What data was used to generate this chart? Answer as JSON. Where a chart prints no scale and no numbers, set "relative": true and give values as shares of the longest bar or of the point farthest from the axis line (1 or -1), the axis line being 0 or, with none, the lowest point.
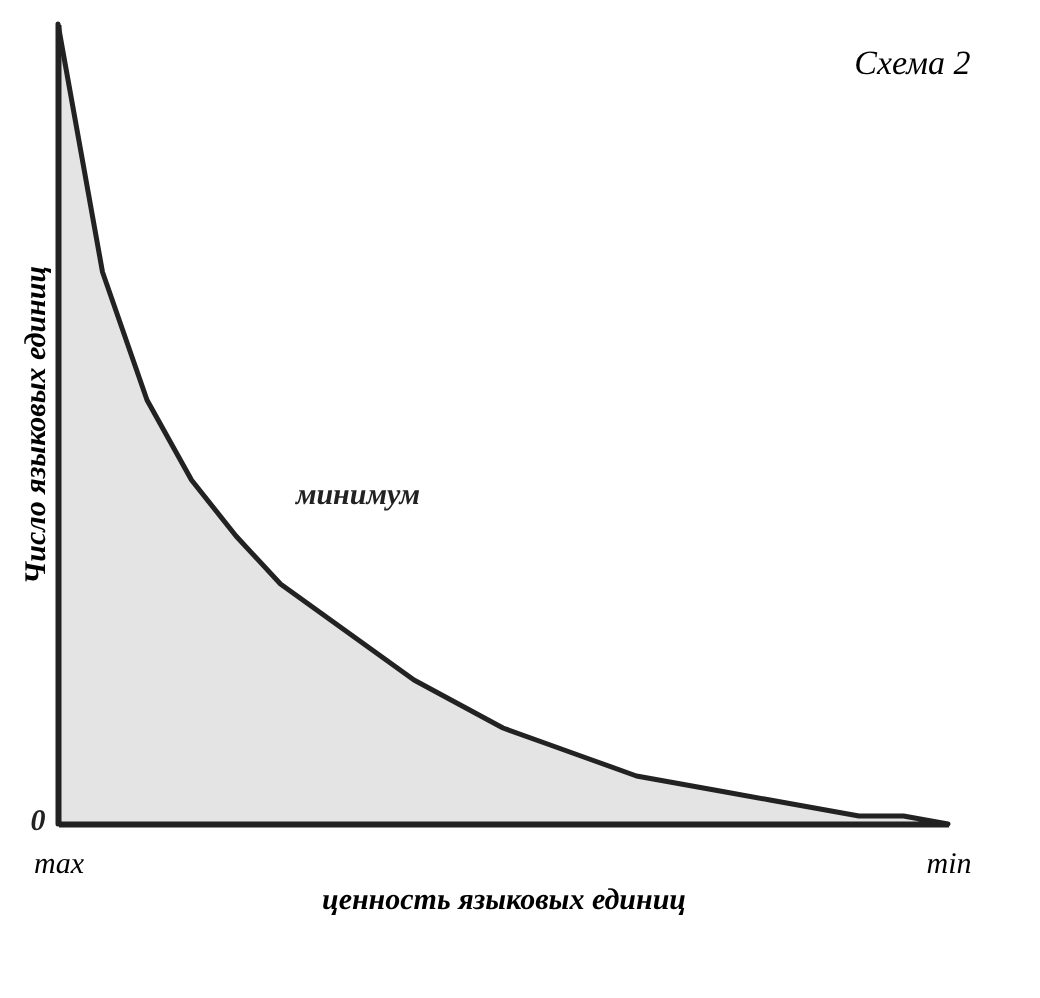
{
  "chart_data": {
    "type": "area",
    "title": "Схема 2",
    "relative": true,
    "xlabel": "ценность языковых единиц",
    "ylabel": "Число языковых единиц",
    "categories": [
      "max",
      null,
      null,
      null,
      null,
      null,
      null,
      null,
      null,
      null,
      null,
      null,
      null,
      null,
      null,
      null,
      null,
      null,
      null,
      null,
      "min"
    ],
    "series": [
      {
        "color": "#222222",
        "values": [
          1,
          0.69,
          0.53,
          0.43,
          0.36,
          0.3,
          0.26,
          0.22,
          0.18,
          0.15,
          0.12,
          0.1,
          0.08,
          0.06,
          0.05,
          0.04,
          0.03,
          0.02,
          0.01,
          0.01,
          0
        ]
      }
    ],
    "annotations": [
      "минимум",
      "0"
    ],
    "grid": false
  }
}
